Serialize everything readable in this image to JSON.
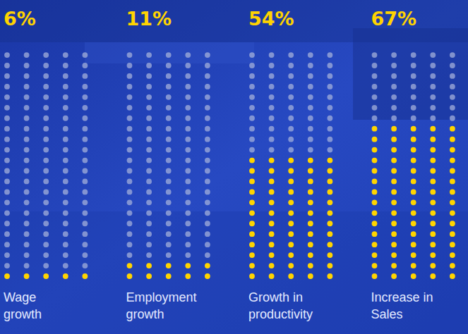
{
  "chart_data": {
    "type": "waffle",
    "categories": [
      "Wage growth",
      "Employment growth",
      "Growth in productivity",
      "Increase in Sales"
    ],
    "values": [
      6,
      11,
      54,
      67
    ],
    "value_labels": [
      "6%",
      "11%",
      "54%",
      "67%"
    ],
    "data_labels": true,
    "tick_labels": false,
    "color": "#ffd400"
  }
}
